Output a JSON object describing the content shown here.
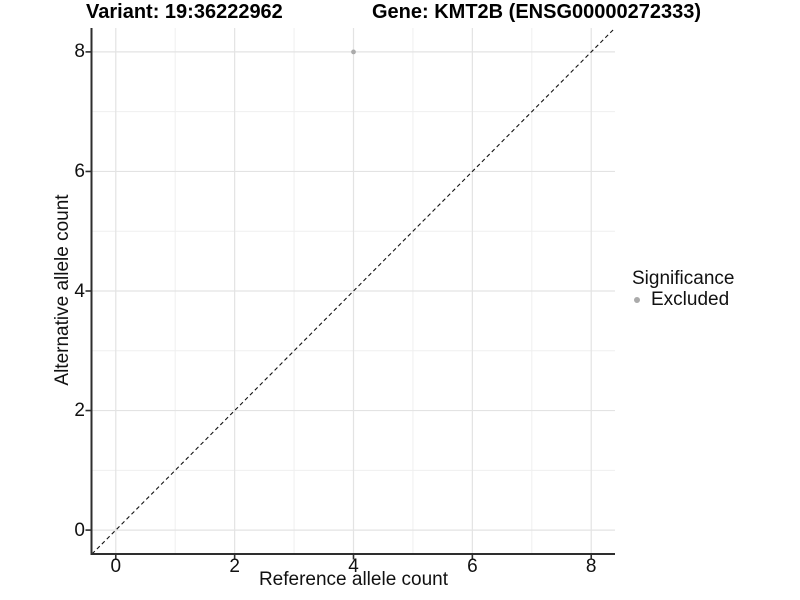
{
  "chart_data": {
    "type": "scatter",
    "titles": {
      "left": "Variant: 19:36222962",
      "right": "Gene: KMT2B (ENSG00000272333)"
    },
    "xlabel": "Reference allele count",
    "ylabel": "Alternative allele count",
    "xlim": [
      -0.4,
      8.4
    ],
    "ylim": [
      -0.4,
      8.4
    ],
    "xticks": [
      0,
      2,
      4,
      6,
      8
    ],
    "yticks": [
      0,
      2,
      4,
      6,
      8
    ],
    "xticks_minor": [
      1,
      3,
      5,
      7
    ],
    "yticks_minor": [
      1,
      3,
      5,
      7
    ],
    "grid": "major+minor",
    "points": [
      {
        "x": 4,
        "y": 8,
        "significance": "Excluded"
      }
    ],
    "identity_line": {
      "slope": 1,
      "intercept": 0,
      "style": "dashed"
    },
    "legend": {
      "title": "Significance",
      "position": "right",
      "items": [
        {
          "label": "Excluded",
          "marker": "circle",
          "color": "#ababab"
        }
      ]
    },
    "colors": {
      "excluded_point": "#ababab",
      "grid_major": "#e3e3e3",
      "grid_minor": "#efefef",
      "axis_line": "#2e2e2e",
      "identity_line": "#141414",
      "text": "#000000"
    }
  }
}
